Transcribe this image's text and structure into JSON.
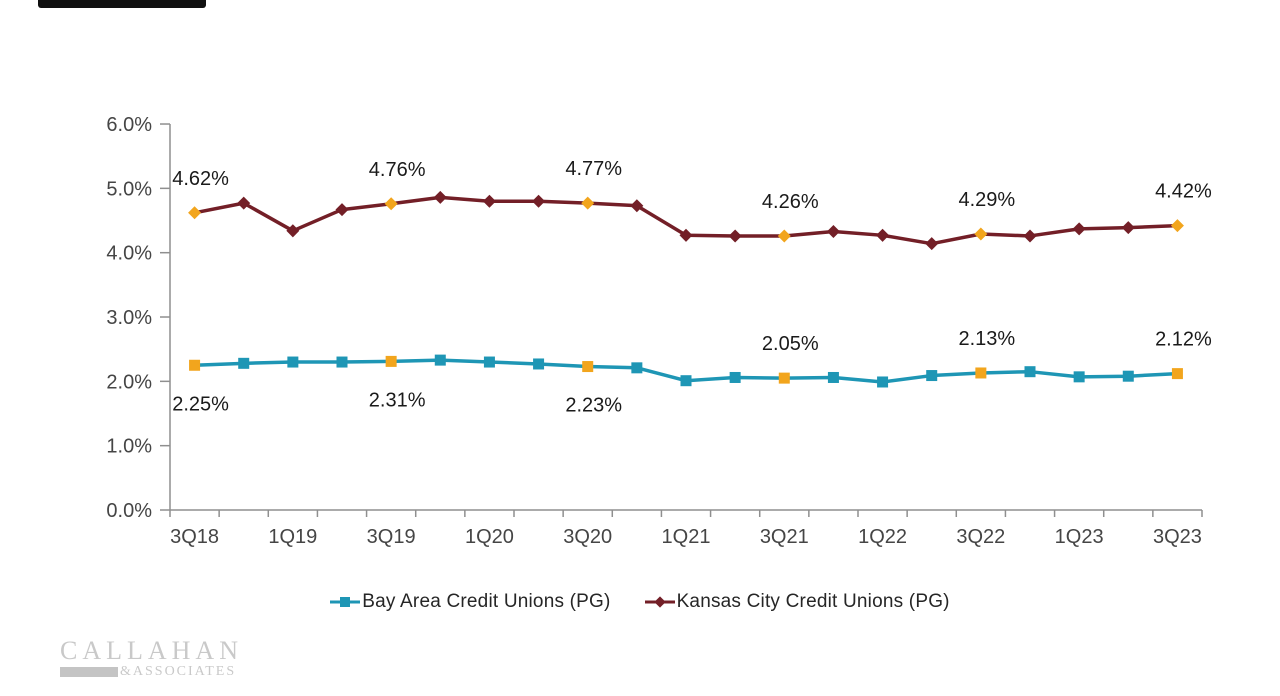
{
  "page": {
    "background": "#ffffff"
  },
  "chart_data": {
    "type": "line",
    "x": [
      "3Q18",
      "4Q18",
      "1Q19",
      "2Q19",
      "3Q19",
      "4Q19",
      "1Q20",
      "2Q20",
      "3Q20",
      "4Q20",
      "1Q21",
      "2Q21",
      "3Q21",
      "4Q21",
      "1Q22",
      "2Q22",
      "3Q22",
      "4Q22",
      "1Q23",
      "2Q23",
      "3Q23"
    ],
    "x_ticks_shown": [
      "3Q18",
      "1Q19",
      "3Q19",
      "1Q20",
      "3Q20",
      "1Q21",
      "3Q21",
      "1Q22",
      "3Q22",
      "1Q23",
      "3Q23"
    ],
    "y_ticks": [
      "0.0%",
      "1.0%",
      "2.0%",
      "3.0%",
      "4.0%",
      "5.0%",
      "6.0%"
    ],
    "ylim": [
      0,
      6
    ],
    "grid": false,
    "legend_position": "bottom",
    "highlight_marker_color": "#F2A51D",
    "axis_color": "#8F8F8F",
    "axis_label_color": "#454545",
    "data_label_color": "#1A1A1A",
    "series": [
      {
        "name": "Bay Area Credit Unions (PG)",
        "color": "#1E96B5",
        "marker": "square",
        "values": [
          2.25,
          2.28,
          2.3,
          2.3,
          2.31,
          2.33,
          2.3,
          2.27,
          2.23,
          2.21,
          2.01,
          2.06,
          2.05,
          2.06,
          1.99,
          2.09,
          2.13,
          2.15,
          2.07,
          2.08,
          2.12
        ],
        "labeled_points": [
          {
            "index": 0,
            "label": "2.25%",
            "position": "below"
          },
          {
            "index": 4,
            "label": "2.31%",
            "position": "below"
          },
          {
            "index": 8,
            "label": "2.23%",
            "position": "below"
          },
          {
            "index": 12,
            "label": "2.05%",
            "position": "above"
          },
          {
            "index": 16,
            "label": "2.13%",
            "position": "above"
          },
          {
            "index": 20,
            "label": "2.12%",
            "position": "above"
          }
        ]
      },
      {
        "name": "Kansas City Credit Unions (PG)",
        "color": "#731F27",
        "marker": "diamond",
        "values": [
          4.62,
          4.77,
          4.34,
          4.67,
          4.76,
          4.86,
          4.8,
          4.8,
          4.77,
          4.73,
          4.27,
          4.26,
          4.26,
          4.33,
          4.27,
          4.14,
          4.29,
          4.26,
          4.37,
          4.39,
          4.42
        ],
        "labeled_points": [
          {
            "index": 0,
            "label": "4.62%",
            "position": "above"
          },
          {
            "index": 4,
            "label": "4.76%",
            "position": "above"
          },
          {
            "index": 8,
            "label": "4.77%",
            "position": "above"
          },
          {
            "index": 12,
            "label": "4.26%",
            "position": "above"
          },
          {
            "index": 16,
            "label": "4.29%",
            "position": "above"
          },
          {
            "index": 20,
            "label": "4.42%",
            "position": "above"
          }
        ]
      }
    ]
  },
  "logo": {
    "line1": "CALLAHAN",
    "line2": "&ASSOCIATES"
  }
}
